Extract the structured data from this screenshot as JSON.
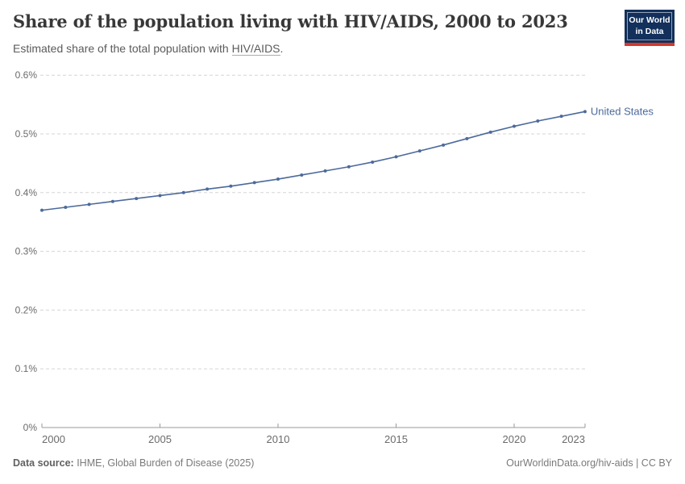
{
  "header": {
    "title": "Share of the population living with HIV/AIDS, 2000 to 2023",
    "subtitle_prefix": "Estimated share of the total population with ",
    "subtitle_link": "HIV/AIDS",
    "subtitle_suffix": ".",
    "logo": {
      "line1": "Our World",
      "line2": "in Data",
      "bg_color": "#12305b",
      "accent_color": "#d4382a"
    }
  },
  "chart_data": {
    "type": "line",
    "title": "Share of the population living with HIV/AIDS, 2000 to 2023",
    "subtitle": "Estimated share of the total population with HIV/AIDS.",
    "xlabel": "",
    "ylabel": "",
    "grid": "horizontal-dashed",
    "legend_position": "end-of-line-label",
    "xlim": [
      2000,
      2023
    ],
    "ylim": [
      0,
      0.6
    ],
    "x_ticks": [
      2000,
      2005,
      2010,
      2015,
      2020,
      2023
    ],
    "y_ticks": [
      {
        "value": 0,
        "label": "0%"
      },
      {
        "value": 0.1,
        "label": "0.1%"
      },
      {
        "value": 0.2,
        "label": "0.2%"
      },
      {
        "value": 0.3,
        "label": "0.3%"
      },
      {
        "value": 0.4,
        "label": "0.4%"
      },
      {
        "value": 0.5,
        "label": "0.5%"
      },
      {
        "value": 0.6,
        "label": "0.6%"
      }
    ],
    "unit": "%",
    "series": [
      {
        "name": "United States",
        "color": "#4C6A9C",
        "x": [
          2000,
          2001,
          2002,
          2003,
          2004,
          2005,
          2006,
          2007,
          2008,
          2009,
          2010,
          2011,
          2012,
          2013,
          2014,
          2015,
          2016,
          2017,
          2018,
          2019,
          2020,
          2021,
          2022,
          2023
        ],
        "values": [
          0.37,
          0.375,
          0.38,
          0.385,
          0.39,
          0.395,
          0.4,
          0.406,
          0.411,
          0.417,
          0.423,
          0.43,
          0.437,
          0.444,
          0.452,
          0.461,
          0.471,
          0.481,
          0.492,
          0.503,
          0.513,
          0.522,
          0.53,
          0.538
        ]
      }
    ],
    "style": {
      "gridline_color": "#d5d5d5",
      "axis_color": "#9a9a9a",
      "tick_label_color": "#6b6b6b"
    }
  },
  "footer": {
    "source_label": "Data source:",
    "source_text": " IHME, Global Burden of Disease (2025)",
    "credit": "OurWorldinData.org/hiv-aids | CC BY"
  }
}
